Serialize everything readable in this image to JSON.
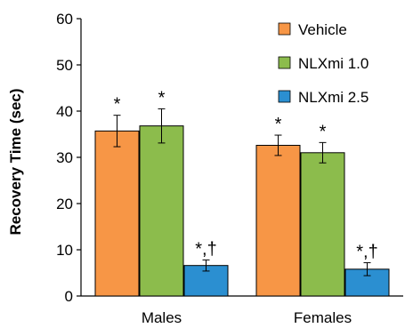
{
  "chart_data": {
    "type": "bar",
    "categories": [
      "Males",
      "Females"
    ],
    "ylabel": "Recovery Time (sec)",
    "ylim": [
      0,
      60
    ],
    "yticks": [
      0,
      10,
      20,
      30,
      40,
      50,
      60
    ],
    "grid": false,
    "legend_position": "top-right",
    "series": [
      {
        "name": "Vehicle",
        "color": "#f79646",
        "values": [
          35.7,
          32.6
        ],
        "errors": [
          3.4,
          2.2
        ],
        "annotations": [
          "*",
          "*"
        ]
      },
      {
        "name": "NLXmi 1.0",
        "color": "#8cbc4c",
        "values": [
          36.8,
          31.0
        ],
        "errors": [
          3.7,
          2.2
        ],
        "annotations": [
          "*",
          "*"
        ]
      },
      {
        "name": "NLXmi 2.5",
        "color": "#2b8fd1",
        "values": [
          6.6,
          5.8
        ],
        "errors": [
          1.2,
          1.4
        ],
        "annotations": [
          "*,†",
          "*,†"
        ]
      }
    ]
  }
}
